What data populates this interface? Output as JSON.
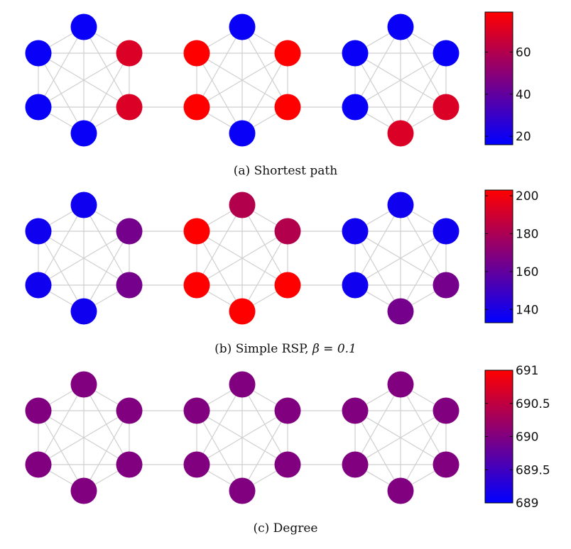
{
  "colormap": {
    "low": "#0000ff",
    "mid": "#800080",
    "high": "#ff0000"
  },
  "panels": [
    {
      "id": "a",
      "caption": "(a)  Shortest path",
      "colorbar": {
        "min": 16,
        "max": 79,
        "ticks": [
          20,
          40,
          60
        ],
        "tick_labels": [
          "20",
          "40",
          "60"
        ]
      },
      "clusters": [
        {
          "nodes": [
            18,
            18,
            18,
            70,
            70,
            18
          ]
        },
        {
          "nodes": [
            18,
            79,
            79,
            79,
            79,
            18
          ]
        },
        {
          "nodes": [
            18,
            18,
            18,
            18,
            70,
            70
          ]
        }
      ]
    },
    {
      "id": "b",
      "caption_prefix": "(b)  Simple RSP, ",
      "caption_math": "β = 0.1",
      "colorbar": {
        "min": 133,
        "max": 203,
        "ticks": [
          140,
          160,
          180,
          200
        ],
        "tick_labels": [
          "140",
          "160",
          "180",
          "200"
        ]
      },
      "clusters": [
        {
          "nodes": [
            137,
            137,
            137,
            165,
            165,
            137
          ]
        },
        {
          "nodes": [
            182,
            203,
            203,
            182,
            203,
            203
          ]
        },
        {
          "nodes": [
            137,
            137,
            137,
            137,
            165,
            165
          ]
        }
      ]
    },
    {
      "id": "c",
      "caption": "(c)  Degree",
      "colorbar": {
        "min": 689,
        "max": 691,
        "ticks": [
          689,
          689.5,
          690,
          690.5,
          691
        ],
        "tick_labels": [
          "689",
          "689.5",
          "690",
          "690.5",
          "691"
        ]
      },
      "clusters": [
        {
          "nodes": [
            690,
            690,
            690,
            690,
            690,
            690
          ]
        },
        {
          "nodes": [
            690,
            690,
            690,
            690,
            690,
            690
          ]
        },
        {
          "nodes": [
            690,
            690,
            690,
            690,
            690,
            690
          ]
        }
      ]
    }
  ]
}
